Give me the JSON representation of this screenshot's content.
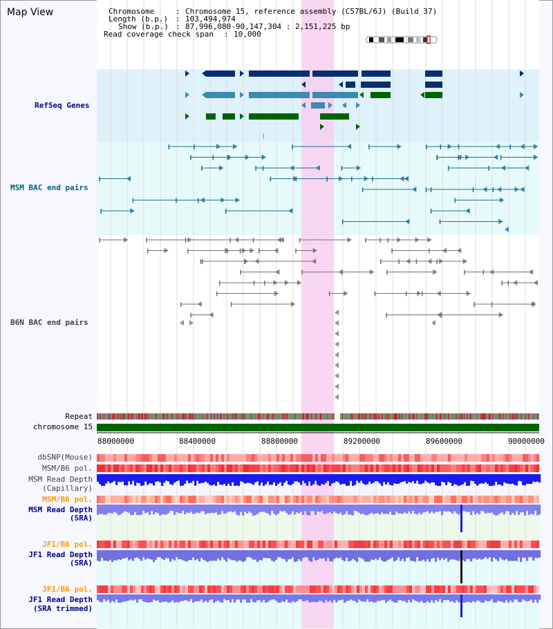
{
  "title": "Map View",
  "info": [
    {
      "key": "Chromosome",
      "sep": ":",
      "value": "Chromosome 15, reference assembly (C57BL/6J) (Build 37)"
    },
    {
      "key": "Length (b.p.)",
      "sep": ":",
      "value": "103,494,974"
    },
    {
      "key": "Show (b.p.)",
      "sep": ":",
      "value": "87,996,080-90,147,304 : 2,151,225 bp"
    },
    {
      "key": "Read coverage check span",
      "sep": ":",
      "value": "10,000"
    }
  ],
  "tracks": {
    "refseq": "RefSeq Genes",
    "msm_bac": "MSM BAC end pairs",
    "b6n_bac": "B6N BAC end pairs",
    "repeat": "Repeat",
    "chromosome": "chromosome 15",
    "dbsnp": "dbSNP(Mouse)",
    "msm_b6_pol_1": "MSM/B6 pol.",
    "msm_depth_cap_1": "MSM Read Depth",
    "msm_depth_cap_2": "(Capillary)",
    "msm_b6_pol_2": "MSM/B6 pol.",
    "msm_depth_sra_1": "MSM Read Depth",
    "msm_depth_sra_2": "(SRA)",
    "jf1_pol_1": "JF1/B6 pol.",
    "jf1_depth_sra_1": "JF1 Read Depth",
    "jf1_depth_sra_2": "(SRA)",
    "jf1_pol_2": "JF1/B6 pol.",
    "jf1_depth_trim_1": "JF1 Read Depth",
    "jf1_depth_trim_2": "(SRA trimmed)"
  },
  "axis": {
    "ticks": [
      "88000000",
      "88400000",
      "88800000",
      "89200000",
      "89600000",
      "90000000"
    ]
  },
  "colors": {
    "label_blue": "#00008b",
    "label_teal": "#005f7f",
    "label_gray": "#404040",
    "label_orange": "#ff9900",
    "highlight": "#f8cff0",
    "gene_dark": "#0a2d6e",
    "gene_mid": "#3b8ab0",
    "gene_green": "#006400",
    "chrom_green": "#006400"
  }
}
